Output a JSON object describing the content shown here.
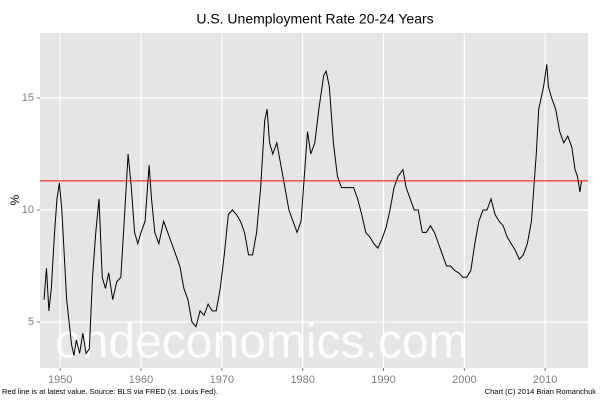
{
  "chart_data": {
    "type": "line",
    "title": "U.S. Unemployment Rate 20-24 Years",
    "y_label": "%",
    "x": [
      1948.0,
      1948.3,
      1948.6,
      1948.9,
      1949.3,
      1949.6,
      1949.9,
      1950.2,
      1950.5,
      1950.8,
      1951.1,
      1951.4,
      1951.7,
      1952.0,
      1952.4,
      1952.8,
      1953.2,
      1953.6,
      1954.0,
      1954.4,
      1954.8,
      1955.2,
      1955.6,
      1956.0,
      1956.5,
      1957.0,
      1957.5,
      1958.0,
      1958.4,
      1958.8,
      1959.2,
      1959.6,
      1960.0,
      1960.5,
      1961.0,
      1961.3,
      1961.7,
      1962.2,
      1962.8,
      1963.3,
      1963.8,
      1964.3,
      1964.8,
      1965.3,
      1965.8,
      1966.3,
      1966.8,
      1967.3,
      1967.8,
      1968.3,
      1968.8,
      1969.3,
      1969.8,
      1970.3,
      1970.8,
      1971.3,
      1971.8,
      1972.3,
      1972.8,
      1973.3,
      1973.8,
      1974.3,
      1974.8,
      1975.3,
      1975.6,
      1975.9,
      1976.3,
      1976.8,
      1977.3,
      1977.8,
      1978.3,
      1978.8,
      1979.3,
      1979.8,
      1980.3,
      1980.6,
      1981.0,
      1981.5,
      1982.0,
      1982.6,
      1982.9,
      1983.3,
      1983.8,
      1984.3,
      1984.8,
      1985.3,
      1985.8,
      1986.3,
      1986.8,
      1987.3,
      1987.8,
      1988.3,
      1988.8,
      1989.3,
      1989.8,
      1990.3,
      1990.8,
      1991.3,
      1991.8,
      1992.4,
      1992.8,
      1993.3,
      1993.8,
      1994.3,
      1994.8,
      1995.3,
      1995.8,
      1996.3,
      1996.8,
      1997.3,
      1997.8,
      1998.3,
      1998.8,
      1999.3,
      1999.8,
      2000.3,
      2000.8,
      2001.3,
      2001.8,
      2002.3,
      2002.8,
      2003.3,
      2003.8,
      2004.3,
      2004.8,
      2005.3,
      2005.8,
      2006.3,
      2006.8,
      2007.3,
      2007.8,
      2008.3,
      2008.6,
      2008.9,
      2009.2,
      2009.5,
      2009.8,
      2010.2,
      2010.4,
      2010.8,
      2011.3,
      2011.8,
      2012.3,
      2012.8,
      2013.3,
      2013.7,
      2014.0,
      2014.3,
      2014.5
    ],
    "series": [
      {
        "name": "Unemployment rate",
        "color": "#000000",
        "values": [
          6.0,
          7.4,
          5.5,
          6.5,
          9.0,
          10.5,
          11.2,
          10.0,
          8.0,
          6.0,
          5.0,
          4.0,
          3.5,
          4.2,
          3.6,
          4.5,
          3.6,
          3.8,
          7.0,
          9.0,
          10.5,
          7.0,
          6.5,
          7.2,
          6.0,
          6.8,
          7.0,
          10.0,
          12.5,
          11.0,
          9.0,
          8.5,
          9.0,
          9.5,
          12.0,
          10.5,
          9.0,
          8.5,
          9.5,
          9.0,
          8.5,
          8.0,
          7.5,
          6.5,
          6.0,
          5.0,
          4.8,
          5.5,
          5.3,
          5.8,
          5.5,
          5.5,
          6.5,
          8.0,
          9.8,
          10.0,
          9.8,
          9.5,
          9.0,
          8.0,
          8.0,
          9.0,
          11.0,
          14.0,
          14.5,
          13.0,
          12.5,
          13.0,
          12.0,
          11.0,
          10.0,
          9.5,
          9.0,
          9.5,
          12.0,
          13.5,
          12.5,
          13.0,
          14.5,
          16.0,
          16.2,
          15.5,
          13.0,
          11.5,
          11.0,
          11.0,
          11.0,
          11.0,
          10.5,
          9.8,
          9.0,
          8.8,
          8.5,
          8.3,
          8.7,
          9.2,
          10.0,
          11.0,
          11.5,
          11.8,
          11.0,
          10.5,
          10.0,
          10.0,
          9.0,
          9.0,
          9.3,
          9.0,
          8.5,
          8.0,
          7.5,
          7.5,
          7.3,
          7.2,
          7.0,
          7.0,
          7.3,
          8.5,
          9.5,
          10.0,
          10.0,
          10.5,
          9.8,
          9.5,
          9.3,
          8.8,
          8.5,
          8.2,
          7.8,
          8.0,
          8.5,
          9.5,
          11.0,
          12.5,
          14.5,
          15.0,
          15.5,
          16.5,
          15.5,
          15.0,
          14.5,
          13.5,
          13.0,
          13.3,
          12.8,
          11.8,
          11.5,
          10.8,
          11.3
        ]
      }
    ],
    "hline": {
      "value": 11.3,
      "color": "#ff0000"
    },
    "xlim": [
      1947.5,
      2015.3
    ],
    "ylim": [
      2.95,
      17.9
    ],
    "xticks": [
      1950,
      1960,
      1970,
      1980,
      1990,
      2000,
      2010
    ],
    "yticks": [
      5,
      10,
      15
    ],
    "grid": true,
    "watermark": "ondeconomics.com",
    "note_left": "Red line is at latest value. Source: BLS via FRED (st. Louis Fed).",
    "note_right": "Chart (C) 2014 Brian Romanchuk"
  }
}
